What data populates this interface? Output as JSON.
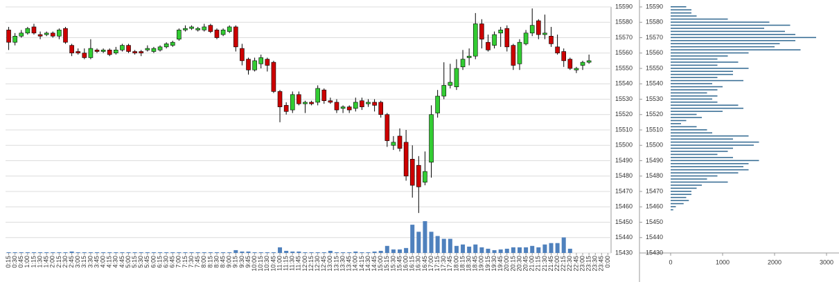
{
  "chart_data": [
    {
      "type": "candlestick",
      "categories": [
        "0:15",
        "0:30",
        "0:45",
        "1:00",
        "1:15",
        "1:30",
        "1:45",
        "2:00",
        "2:15",
        "2:30",
        "2:45",
        "3:00",
        "3:15",
        "3:30",
        "3:45",
        "4:00",
        "4:15",
        "4:30",
        "4:45",
        "5:00",
        "5:15",
        "5:30",
        "5:45",
        "6:00",
        "6:15",
        "6:30",
        "6:45",
        "7:00",
        "7:15",
        "7:30",
        "7:45",
        "8:00",
        "8:15",
        "8:30",
        "8:45",
        "9:00",
        "9:15",
        "9:30",
        "9:45",
        "10:00",
        "10:15",
        "10:30",
        "10:45",
        "11:00",
        "11:15",
        "11:30",
        "11:45",
        "12:00",
        "12:15",
        "12:30",
        "12:45",
        "13:00",
        "13:15",
        "13:30",
        "13:45",
        "14:00",
        "14:15",
        "14:30",
        "14:45",
        "15:00",
        "15:15",
        "15:30",
        "15:45",
        "16:00",
        "16:15",
        "16:30",
        "16:45",
        "17:00",
        "17:15",
        "17:30",
        "17:45",
        "18:00",
        "18:15",
        "18:30",
        "18:45",
        "19:00",
        "19:15",
        "19:30",
        "19:45",
        "20:00",
        "20:15",
        "20:30",
        "20:45",
        "21:00",
        "21:15",
        "21:30",
        "21:45",
        "22:00",
        "22:15",
        "22:30",
        "22:45",
        "23:00",
        "23:15",
        "23:30",
        "23:45",
        "0:00"
      ],
      "open": [
        15575,
        15567,
        15571,
        15573,
        15577,
        15572,
        15572,
        15573,
        15571,
        15576,
        15565,
        15561,
        15560,
        15557,
        15562,
        15561,
        15562,
        15560,
        15562,
        15565,
        15561,
        15561,
        15562,
        15561,
        15562,
        15564,
        15565,
        15569,
        15575,
        15576,
        15575,
        15575,
        15578,
        15575,
        15572,
        15574,
        15577,
        15563,
        15556,
        15549,
        15553,
        15556,
        15554,
        15535,
        15526,
        15523,
        15533,
        15527,
        15528,
        15528,
        15536,
        15529,
        15528,
        15524,
        15525,
        15524,
        15529,
        15527,
        15528,
        15528,
        15520,
        15500,
        15506,
        15502,
        15491,
        15487,
        15476,
        15489,
        15521,
        15532,
        15539,
        15538,
        15551,
        15557,
        15558,
        15579,
        15567,
        15565,
        15573,
        15576,
        15565,
        15553,
        15566,
        15573,
        15581,
        15572,
        15571,
        15564,
        15561,
        15556,
        15549,
        15552,
        15554,
        null,
        null,
        null
      ],
      "high": [
        15577,
        15573,
        15575,
        15577,
        15579,
        15574,
        15574,
        15574,
        15576,
        15577,
        15566,
        15563,
        15563,
        15569,
        15563,
        15563,
        15563,
        15564,
        15566,
        15566,
        15562,
        15562,
        15565,
        15564,
        15565,
        15567,
        15568,
        15576,
        15578,
        15578,
        15577,
        15579,
        15579,
        15576,
        15576,
        15578,
        15578,
        15566,
        15557,
        15557,
        15559,
        15557,
        15555,
        15536,
        15528,
        15535,
        15535,
        15529,
        15529,
        15539,
        15537,
        15531,
        15530,
        15526,
        15526,
        15531,
        15531,
        15530,
        15530,
        15529,
        15521,
        15506,
        15511,
        15510,
        15500,
        15493,
        15496,
        15526,
        15536,
        15554,
        15553,
        15556,
        15562,
        15563,
        15586,
        15582,
        15572,
        15574,
        15577,
        15578,
        15566,
        15569,
        15575,
        15589,
        15582,
        15585,
        15577,
        15572,
        15563,
        15557,
        15551,
        15555,
        15559,
        null,
        null,
        null
      ],
      "low": [
        15562,
        15565,
        15570,
        15572,
        15572,
        15569,
        15571,
        15570,
        15569,
        15566,
        15558,
        15559,
        15556,
        15556,
        15560,
        15560,
        15558,
        15559,
        15561,
        15560,
        15559,
        15558,
        15561,
        15560,
        15561,
        15563,
        15564,
        15568,
        15574,
        15575,
        15574,
        15574,
        15573,
        15569,
        15571,
        15573,
        15561,
        15552,
        15546,
        15548,
        15550,
        15548,
        15534,
        15515,
        15520,
        15521,
        15526,
        15521,
        15526,
        15526,
        15527,
        15527,
        15521,
        15521,
        15521,
        15522,
        15523,
        15525,
        15522,
        15518,
        15499,
        15497,
        15496,
        15477,
        15466,
        15456,
        15474,
        15479,
        15518,
        15530,
        15537,
        15536,
        15549,
        15552,
        15556,
        15563,
        15561,
        15563,
        15564,
        15561,
        15549,
        15549,
        15565,
        15571,
        15569,
        15569,
        15564,
        15559,
        15551,
        15549,
        15547,
        15549,
        15553,
        null,
        null,
        null
      ],
      "close": [
        15567,
        15571,
        15573,
        15576,
        15573,
        15571,
        15573,
        15571,
        15575,
        15567,
        15560,
        15560,
        15557,
        15563,
        15561,
        15562,
        15559,
        15562,
        15565,
        15561,
        15560,
        15560,
        15563,
        15563,
        15564,
        15566,
        15567,
        15575,
        15576,
        15577,
        15576,
        15577,
        15574,
        15570,
        15575,
        15577,
        15564,
        15555,
        15549,
        15555,
        15557,
        15552,
        15535,
        15525,
        15522,
        15533,
        15527,
        15528,
        15527,
        15537,
        15529,
        15528,
        15523,
        15525,
        15523,
        15528,
        15525,
        15528,
        15526,
        15520,
        15503,
        15502,
        15498,
        15480,
        15474,
        15473,
        15483,
        15520,
        15532,
        15539,
        15541,
        15550,
        15556,
        15558,
        15579,
        15569,
        15562,
        15572,
        15575,
        15564,
        15552,
        15567,
        15573,
        15578,
        15572,
        15573,
        15566,
        15560,
        15555,
        15550,
        15550,
        15554,
        15555,
        null,
        null,
        null
      ],
      "volume": [
        1,
        1,
        1,
        1,
        1,
        1,
        1,
        1,
        1,
        1,
        2,
        1,
        1,
        1,
        1,
        1,
        1,
        1,
        1,
        1,
        1,
        1,
        1,
        1,
        1,
        1,
        1,
        1,
        1,
        1,
        1,
        1,
        1,
        1,
        1,
        1,
        4,
        2,
        2,
        1,
        1,
        1,
        1,
        8,
        3,
        2,
        2,
        1,
        1,
        1,
        1,
        3,
        1,
        1,
        1,
        2,
        1,
        1,
        2,
        3,
        10,
        5,
        5,
        7,
        40,
        30,
        45,
        30,
        24,
        20,
        20,
        10,
        12,
        9,
        12,
        8,
        6,
        4,
        5,
        6,
        8,
        8,
        8,
        10,
        8,
        12,
        14,
        14,
        22,
        6,
        0,
        0,
        0,
        null,
        null,
        null
      ],
      "up_color": "#33cc33",
      "down_color": "#cc0000",
      "volume_color": "#4f81bd",
      "ylim": [
        15430,
        15590
      ],
      "yticks": [
        15430,
        15440,
        15450,
        15460,
        15470,
        15480,
        15490,
        15500,
        15510,
        15520,
        15530,
        15540,
        15550,
        15560,
        15570,
        15580,
        15590
      ],
      "grid": true
    },
    {
      "type": "barh",
      "y": [
        15590,
        15588,
        15586,
        15584,
        15582,
        15580,
        15578,
        15576,
        15574,
        15572,
        15570,
        15568,
        15566,
        15564,
        15562,
        15560,
        15558,
        15556,
        15554,
        15552,
        15550,
        15548,
        15546,
        15544,
        15542,
        15540,
        15538,
        15536,
        15534,
        15532,
        15530,
        15528,
        15526,
        15524,
        15522,
        15520,
        15518,
        15516,
        15514,
        15512,
        15510,
        15508,
        15506,
        15504,
        15502,
        15500,
        15498,
        15496,
        15494,
        15492,
        15490,
        15488,
        15486,
        15484,
        15482,
        15480,
        15478,
        15476,
        15474,
        15472,
        15470,
        15468,
        15466,
        15464,
        15462,
        15460,
        15458
      ],
      "values": [
        300,
        400,
        400,
        500,
        1100,
        1900,
        2300,
        1800,
        2200,
        2400,
        2800,
        2400,
        2100,
        2000,
        2500,
        1500,
        1100,
        900,
        1300,
        900,
        1500,
        1200,
        1200,
        900,
        1400,
        800,
        1000,
        900,
        700,
        900,
        800,
        900,
        1300,
        1400,
        1000,
        500,
        600,
        300,
        200,
        500,
        700,
        800,
        1500,
        1200,
        1700,
        1600,
        1200,
        1100,
        900,
        1200,
        1700,
        1500,
        1400,
        1500,
        1300,
        900,
        700,
        1100,
        600,
        500,
        400,
        400,
        300,
        350,
        250,
        100,
        50
      ],
      "color": "#3a6f96",
      "xlim": [
        0,
        3000
      ],
      "xticks": [
        0,
        1000,
        2000,
        3000
      ],
      "ylim": [
        15430,
        15590
      ],
      "yticks": [
        15430,
        15440,
        15450,
        15460,
        15470,
        15480,
        15490,
        15500,
        15510,
        15520,
        15530,
        15540,
        15550,
        15560,
        15570,
        15580,
        15590
      ]
    }
  ]
}
